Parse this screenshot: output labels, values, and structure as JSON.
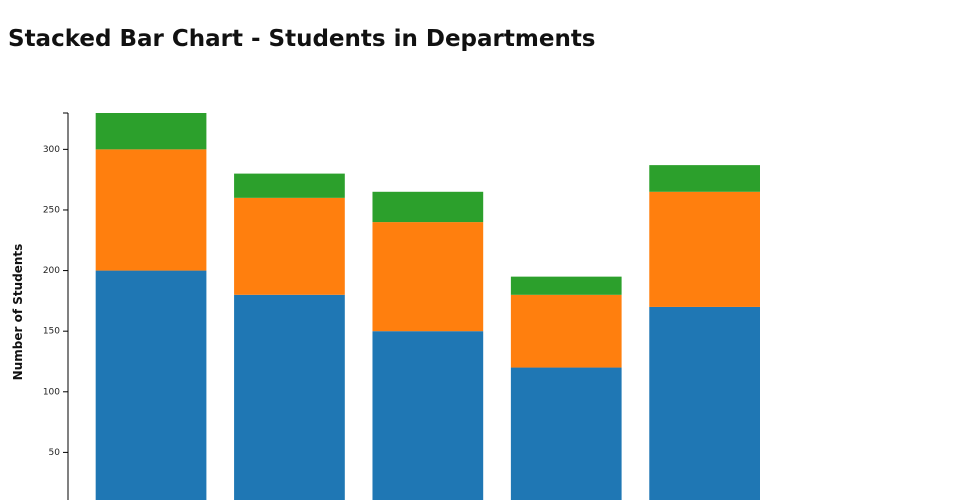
{
  "chart_data": {
    "type": "stacked-bar",
    "title": "Stacked Bar Chart - Students in Departments",
    "y_label": "Number of Students",
    "categories": [
      null,
      null,
      null,
      null,
      null
    ],
    "series": [
      {
        "color": "#1f77b4",
        "values": [
          200,
          180,
          150,
          120,
          170
        ]
      },
      {
        "color": "#ff7f0e",
        "values": [
          100,
          80,
          90,
          60,
          95
        ]
      },
      {
        "color": "#2ca02c",
        "values": [
          30,
          20,
          25,
          15,
          22
        ]
      }
    ],
    "ylim": [
      0,
      330
    ],
    "yticks": [
      50,
      100,
      150,
      200,
      250,
      300
    ],
    "grid": false
  }
}
